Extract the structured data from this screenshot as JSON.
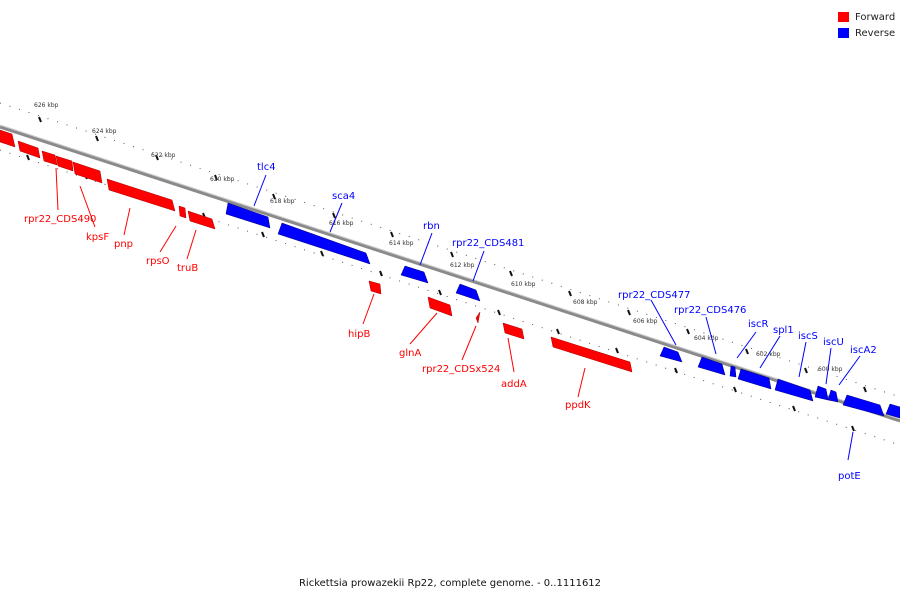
{
  "colors": {
    "forward": "#ff0000",
    "reverse": "#0000ff",
    "backbone": "#8a8a8a"
  },
  "legend": [
    {
      "label": "Forward",
      "color": "#ff0000"
    },
    {
      "label": "Reverse",
      "color": "#0000ff"
    }
  ],
  "caption": "Rickettsia prowazekii Rp22, complete genome. - 0..1111612",
  "tick_labels": [
    "626 kbp",
    "624 kbp",
    "622 kbp",
    "620 kbp",
    "618 kbp",
    "616 kbp",
    "614 kbp",
    "612 kbp",
    "610 kbp",
    "608 kbp",
    "606 kbp",
    "604 kbp",
    "602 kbp",
    "600 kbp"
  ],
  "genes": {
    "forward": [
      "rpr22_CDS490",
      "kpsF",
      "pnp",
      "rpsO",
      "truB",
      "hipB",
      "glnA",
      "rpr22_CDSx524",
      "addA",
      "ppdK"
    ],
    "reverse": [
      "tlc4",
      "sca4",
      "rbn",
      "rpr22_CDS481",
      "rpr22_CDS477",
      "rpr22_CDS476",
      "iscR",
      "spl1",
      "iscS",
      "iscU",
      "iscA2",
      "potE"
    ]
  }
}
